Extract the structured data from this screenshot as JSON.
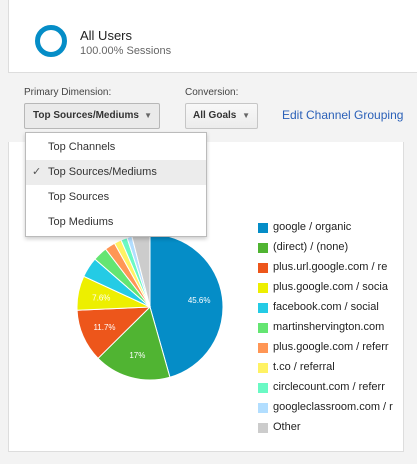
{
  "segment": {
    "title": "All Users",
    "subtitle": "100.00% Sessions",
    "color": "#058dc7"
  },
  "controls": {
    "primary_label": "Primary Dimension:",
    "primary_value": "Top Sources/Mediums",
    "conversion_label": "Conversion:",
    "conversion_value": "All Goals",
    "edit_link": "Edit Channel Grouping"
  },
  "menu": {
    "items": [
      {
        "label": "Top Channels",
        "selected": false
      },
      {
        "label": "Top Sources/Mediums",
        "selected": true
      },
      {
        "label": "Top Sources",
        "selected": false
      },
      {
        "label": "Top Mediums",
        "selected": false
      }
    ]
  },
  "chart_data": {
    "type": "pie",
    "title": "",
    "series": [
      {
        "name": "google / organic",
        "value": 45.6,
        "color": "#058dc7",
        "label": "45.6%"
      },
      {
        "name": "(direct) / (none)",
        "value": 17.0,
        "color": "#50b432",
        "label": "17%"
      },
      {
        "name": "plus.url.google.com / re",
        "value": 11.7,
        "color": "#ed561b",
        "label": "11.7%"
      },
      {
        "name": "plus.google.com / socia",
        "value": 7.6,
        "color": "#edef00",
        "label": "7.6%"
      },
      {
        "name": "facebook.com / social",
        "value": 4.5,
        "color": "#24cbe5",
        "label": ""
      },
      {
        "name": "martinshervington.com",
        "value": 3.2,
        "color": "#64e572",
        "label": ""
      },
      {
        "name": "plus.google.com / referr",
        "value": 2.3,
        "color": "#ff9655",
        "label": ""
      },
      {
        "name": "t.co / referral",
        "value": 1.6,
        "color": "#fff263",
        "label": ""
      },
      {
        "name": "circlecount.com / referr",
        "value": 1.4,
        "color": "#6af9c4",
        "label": ""
      },
      {
        "name": "googleclassroom.com / r",
        "value": 1.1,
        "color": "#b2deff",
        "label": ""
      },
      {
        "name": "Other",
        "value": 4.0,
        "color": "#cccccc",
        "label": ""
      }
    ]
  }
}
